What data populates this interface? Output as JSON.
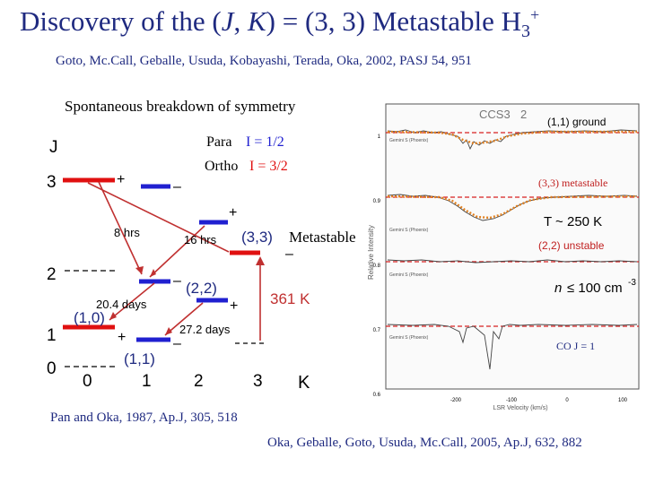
{
  "title": {
    "main": "Discovery of the (",
    "j": "J",
    "comma": ", ",
    "k": "K",
    "rest": ") = (3, 3) Metastable H",
    "sub": "3",
    "sup": "+"
  },
  "authors": "Goto, Mc.Call, Geballe, Usuda, Kobayashi, Terada, Oka, 2002, PASJ 54, 951",
  "subtitle": "Spontaneous breakdown of symmetry",
  "diagram": {
    "j_label": "J",
    "j_values": [
      "3",
      "2",
      "1",
      "0"
    ],
    "k_label": "K",
    "k_values": [
      "0",
      "1",
      "2",
      "3"
    ],
    "para_label": "Para",
    "para_value": "I = 1/2",
    "ortho_label": "Ortho",
    "ortho_value": "I = 3/2",
    "lifetimes": [
      "8 hrs",
      "16 hrs",
      "20.4 days",
      "27.2 days"
    ],
    "state_labels": [
      "(3,3)",
      "(2,2)",
      "(1,0)",
      "(1,1)"
    ],
    "metastable_label": "Metastable",
    "energy_label": "361 K",
    "parity_plus": "+",
    "parity_minus": "–",
    "colors": {
      "para": "#2020d0",
      "ortho": "#e01010"
    }
  },
  "spectrum": {
    "header": "CCS3",
    "header_num": "2",
    "annotations": {
      "ground": "(1,1) ground",
      "metastable": "(3,3) metastable",
      "temperature": "T ~ 250 K",
      "unstable": "(2,2) unstable",
      "density_prefix": "n",
      "density_value": "≤ 100 cm",
      "density_exp": "-3",
      "co": "CO J = 1"
    },
    "y_label": "Relative Intensity",
    "x_label": "LSR Velocity (km/s)",
    "y_ticks": [
      "1",
      "0.9",
      "0.8",
      "0.7",
      "0.6"
    ],
    "x_ticks": [
      "-200",
      "-100",
      "0",
      "100"
    ],
    "trace_captions": [
      "Gemini S (Phoenix)",
      "Gemini S (Phoenix)",
      "Gemini S (Phoenix)",
      "Gemini S (Phoenix)"
    ],
    "colors": {
      "fit": "#e08020",
      "guide": "#d82020"
    }
  },
  "references": {
    "ref1": "Pan and Oka, 1987, Ap.J, 305, 518",
    "ref2": "Oka, Geballe, Goto, Usuda, Mc.Call, 2005, Ap.J, 632, 882"
  }
}
